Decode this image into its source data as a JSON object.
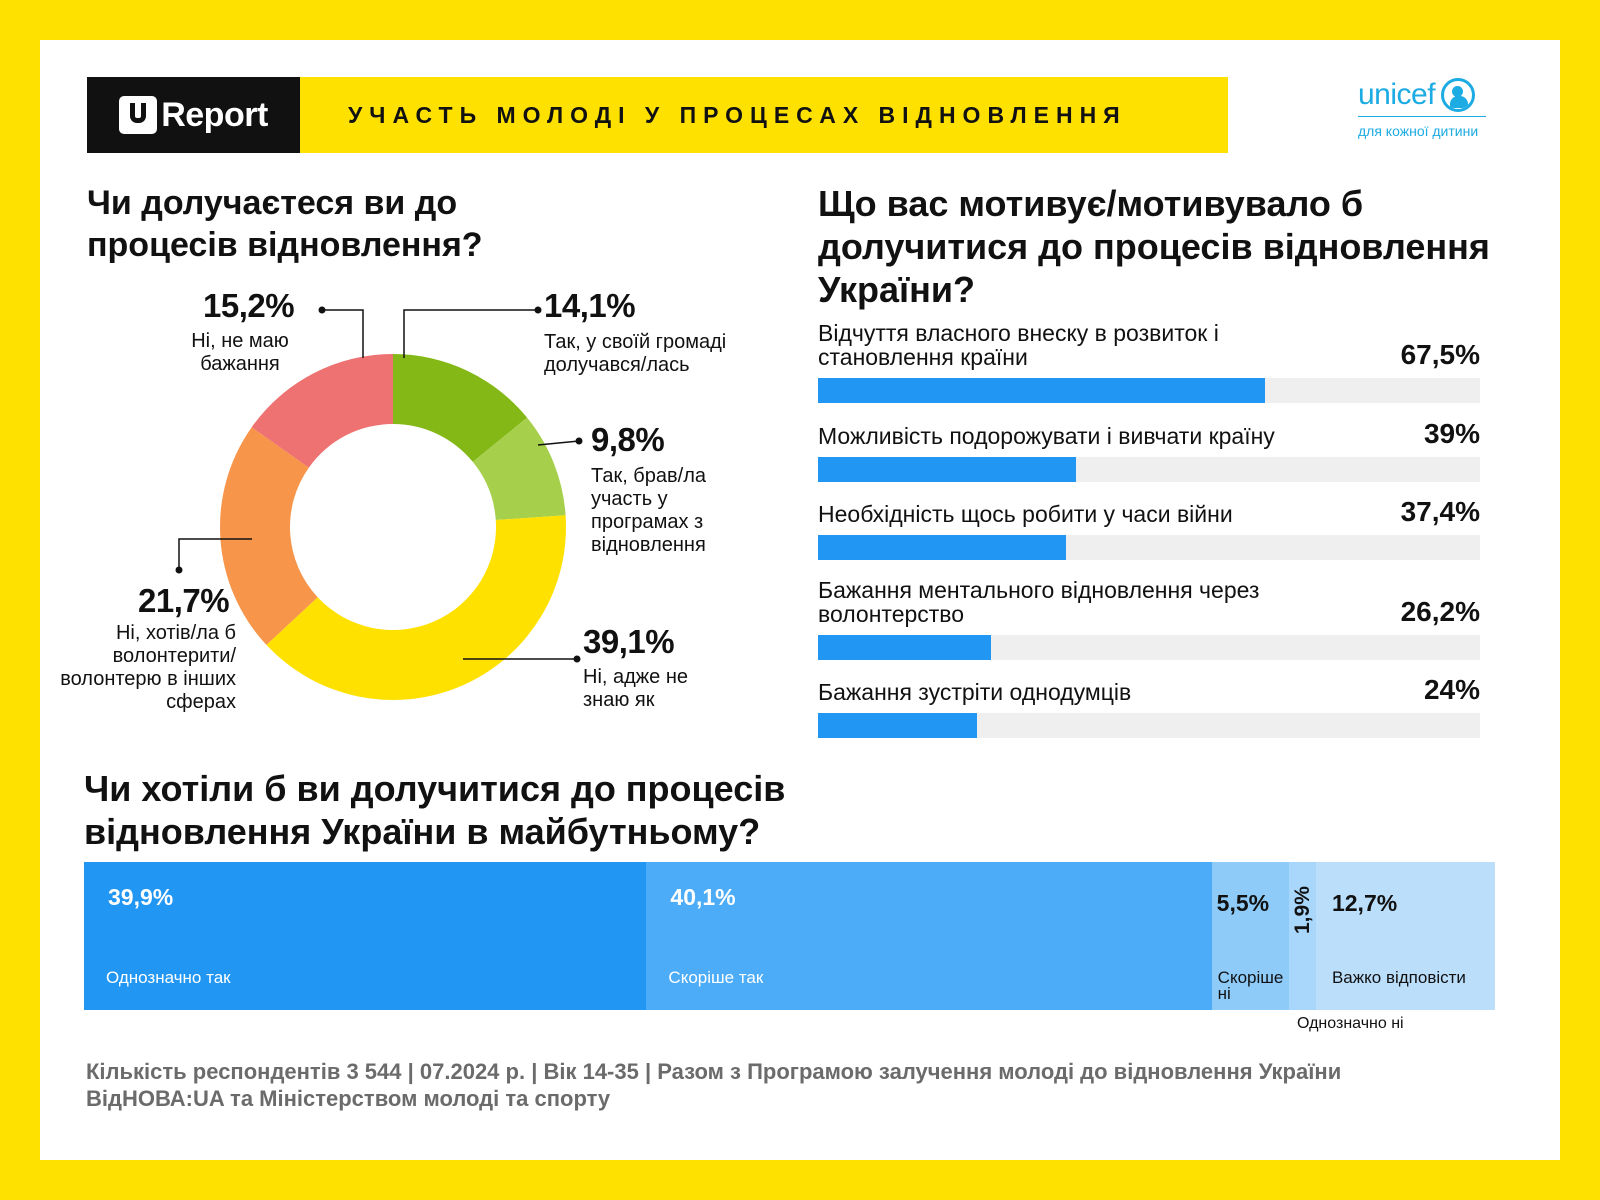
{
  "header": {
    "logo_text": "Report",
    "title": "УЧАСТЬ МОЛОДІ У ПРОЦЕСАХ ВІДНОВЛЕННЯ",
    "unicef_word": "unicef",
    "unicef_tagline": "для кожної дитини"
  },
  "colors": {
    "background": "#FFE100",
    "bar_blue": "#2196F3",
    "track_gray": "#EFEFEF",
    "donut": [
      "#84B817",
      "#A6D04B",
      "#FFE100",
      "#F7954A",
      "#EE7271"
    ],
    "stack": [
      "#2196F3",
      "#4DACF7",
      "#8ECBF9",
      "#A9D6FB",
      "#BBDEFB"
    ]
  },
  "q1": {
    "title": "Чи долучаєтеся ви до процесів відновлення?"
  },
  "q2": {
    "title": "Що вас мотивує/мотивувало б долучитися до процесів відновлення України?"
  },
  "q3": {
    "title": "Чи хотіли б ви долучитися до процесів відновлення України в майбутньому?"
  },
  "footer": {
    "text": "Кількість респондентів 3 544 | 07.2024 р. | Вік 14-35 | Разом з Програмою залучення молоді до відновлення України ВідНОВА:UA та Міністерством   молоді та спорту"
  },
  "chart_data": [
    {
      "type": "pie",
      "title": "Чи долучаєтеся ви до процесів відновлення?",
      "categories": [
        "Так, у своїй громаді долучався/лась",
        "Так, брав/ла участь у програмах з відновлення",
        "Ні, адже не знаю як",
        "Ні, хотів/ла б волонтерити/ волонтерю в інших сферах",
        "Ні, не маю бажання"
      ],
      "values": [
        14.1,
        9.8,
        39.1,
        21.7,
        15.2
      ],
      "labels": [
        "14,1%",
        "9,8%",
        "39,1%",
        "21,7%",
        "15,2%"
      ]
    },
    {
      "type": "bar",
      "title": "Що вас мотивує/мотивувало б долучитися до процесів відновлення України?",
      "categories": [
        "Відчуття власного внеску в розвиток і становлення країни",
        "Можливість подорожувати і вивчати країну",
        "Необхідність щось робити у часи війни",
        "Бажання ментального відновлення через волонтерство",
        "Бажання зустріти однодумців"
      ],
      "values": [
        67.5,
        39,
        37.4,
        26.2,
        24
      ],
      "labels": [
        "67,5%",
        "39%",
        "37,4%",
        "26,2%",
        "24%"
      ],
      "ylim": [
        0,
        100
      ]
    },
    {
      "type": "bar",
      "title": "Чи хотіли б ви долучитися до процесів відновлення України в майбутньому?",
      "categories": [
        "Однозначно так",
        "Скоріше так",
        "Скоріше ні",
        "Однозначно ні",
        "Важко відповісти"
      ],
      "values": [
        39.9,
        40.1,
        5.5,
        1.9,
        12.7
      ],
      "labels": [
        "39,9%",
        "40,1%",
        "5,5%",
        "1,9%",
        "12,7%"
      ]
    }
  ]
}
